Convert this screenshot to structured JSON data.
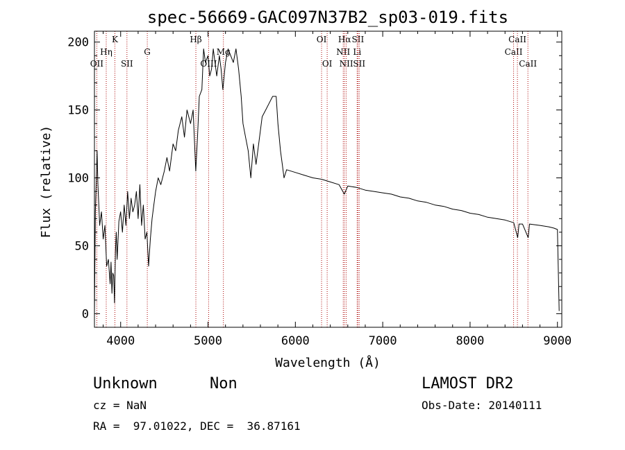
{
  "title": "spec-56669-GAC097N37B2_sp03-019.fits",
  "xlabel": "Wavelength (Å)",
  "ylabel": "Flux (relative)",
  "info": {
    "class_label": "Unknown",
    "subclass_label": "Non",
    "survey": "LAMOST DR2",
    "cz": "cz = NaN",
    "obs_date": "Obs-Date: 20140111",
    "coords": "RA =  97.01022, DEC =  36.87161"
  },
  "colors": {
    "spectrum": "#000000",
    "line_marker": "#aa0000",
    "axes": "#000000"
  },
  "chart_data": {
    "type": "line",
    "title": "spec-56669-GAC097N37B2_sp03-019.fits",
    "xlabel": "Wavelength (Å)",
    "ylabel": "Flux (relative)",
    "xlim": [
      3700,
      9050
    ],
    "ylim": [
      -10,
      208
    ],
    "x_ticks": [
      4000,
      5000,
      6000,
      7000,
      8000,
      9000
    ],
    "y_ticks": [
      0,
      50,
      100,
      150,
      200
    ],
    "grid": false,
    "series": [
      {
        "points": [
          [
            3700,
            0
          ],
          [
            3710,
            75
          ],
          [
            3720,
            95
          ],
          [
            3730,
            120
          ],
          [
            3740,
            95
          ],
          [
            3750,
            80
          ],
          [
            3760,
            65
          ],
          [
            3780,
            75
          ],
          [
            3800,
            55
          ],
          [
            3820,
            65
          ],
          [
            3840,
            35
          ],
          [
            3860,
            40
          ],
          [
            3880,
            22
          ],
          [
            3890,
            38
          ],
          [
            3900,
            15
          ],
          [
            3910,
            30
          ],
          [
            3920,
            28
          ],
          [
            3930,
            8
          ],
          [
            3940,
            45
          ],
          [
            3950,
            60
          ],
          [
            3960,
            40
          ],
          [
            3980,
            68
          ],
          [
            4000,
            75
          ],
          [
            4020,
            60
          ],
          [
            4040,
            80
          ],
          [
            4060,
            65
          ],
          [
            4080,
            90
          ],
          [
            4100,
            70
          ],
          [
            4120,
            85
          ],
          [
            4140,
            75
          ],
          [
            4160,
            80
          ],
          [
            4180,
            90
          ],
          [
            4200,
            70
          ],
          [
            4220,
            95
          ],
          [
            4240,
            65
          ],
          [
            4260,
            80
          ],
          [
            4280,
            55
          ],
          [
            4300,
            60
          ],
          [
            4320,
            35
          ],
          [
            4340,
            55
          ],
          [
            4360,
            70
          ],
          [
            4380,
            80
          ],
          [
            4400,
            90
          ],
          [
            4430,
            100
          ],
          [
            4460,
            95
          ],
          [
            4500,
            105
          ],
          [
            4530,
            115
          ],
          [
            4560,
            105
          ],
          [
            4600,
            125
          ],
          [
            4630,
            120
          ],
          [
            4660,
            135
          ],
          [
            4700,
            145
          ],
          [
            4730,
            130
          ],
          [
            4760,
            150
          ],
          [
            4800,
            140
          ],
          [
            4830,
            150
          ],
          [
            4860,
            105
          ],
          [
            4880,
            130
          ],
          [
            4900,
            160
          ],
          [
            4930,
            165
          ],
          [
            4950,
            195
          ],
          [
            4970,
            185
          ],
          [
            5000,
            190
          ],
          [
            5020,
            175
          ],
          [
            5040,
            180
          ],
          [
            5060,
            195
          ],
          [
            5080,
            185
          ],
          [
            5100,
            175
          ],
          [
            5130,
            190
          ],
          [
            5150,
            180
          ],
          [
            5170,
            165
          ],
          [
            5200,
            185
          ],
          [
            5230,
            195
          ],
          [
            5260,
            190
          ],
          [
            5290,
            185
          ],
          [
            5320,
            195
          ],
          [
            5350,
            180
          ],
          [
            5380,
            160
          ],
          [
            5400,
            140
          ],
          [
            5430,
            130
          ],
          [
            5460,
            120
          ],
          [
            5490,
            100
          ],
          [
            5520,
            125
          ],
          [
            5550,
            110
          ],
          [
            5580,
            125
          ],
          [
            5620,
            145
          ],
          [
            5660,
            150
          ],
          [
            5700,
            155
          ],
          [
            5740,
            160
          ],
          [
            5780,
            160
          ],
          [
            5800,
            140
          ],
          [
            5830,
            120
          ],
          [
            5850,
            110
          ],
          [
            5870,
            100
          ],
          [
            5900,
            106
          ],
          [
            6000,
            104
          ],
          [
            6100,
            102
          ],
          [
            6200,
            100
          ],
          [
            6300,
            99
          ],
          [
            6400,
            97
          ],
          [
            6500,
            95
          ],
          [
            6560,
            88
          ],
          [
            6600,
            94
          ],
          [
            6700,
            93
          ],
          [
            6800,
            91
          ],
          [
            6900,
            90
          ],
          [
            7000,
            89
          ],
          [
            7100,
            88
          ],
          [
            7200,
            86
          ],
          [
            7300,
            85
          ],
          [
            7400,
            83
          ],
          [
            7500,
            82
          ],
          [
            7600,
            80
          ],
          [
            7700,
            79
          ],
          [
            7800,
            77
          ],
          [
            7900,
            76
          ],
          [
            8000,
            74
          ],
          [
            8100,
            73
          ],
          [
            8200,
            71
          ],
          [
            8300,
            70
          ],
          [
            8400,
            69
          ],
          [
            8500,
            67
          ],
          [
            8545,
            56
          ],
          [
            8560,
            66
          ],
          [
            8600,
            66
          ],
          [
            8665,
            56
          ],
          [
            8680,
            66
          ],
          [
            8800,
            65
          ],
          [
            8900,
            64
          ],
          [
            8960,
            63
          ],
          [
            9000,
            62
          ],
          [
            9020,
            2
          ]
        ]
      }
    ],
    "line_markers": [
      {
        "wavelength": 3727,
        "label": "OII",
        "row": 3
      },
      {
        "wavelength": 3835,
        "label": "Hη",
        "row": 2
      },
      {
        "wavelength": 3934,
        "label": "K",
        "row": 1
      },
      {
        "wavelength": 4072,
        "label": "SII",
        "row": 3
      },
      {
        "wavelength": 4305,
        "label": "G",
        "row": 2
      },
      {
        "wavelength": 4861,
        "label": "Hβ",
        "row": 1
      },
      {
        "wavelength": 5007,
        "label": "OIII",
        "row": 3
      },
      {
        "wavelength": 5176,
        "label": "Mg",
        "row": 2
      },
      {
        "wavelength": 6300,
        "label": "OI",
        "row": 1
      },
      {
        "wavelength": 6364,
        "label": "OI",
        "row": 3
      },
      {
        "wavelength": 6548,
        "label": "NII",
        "row": 2
      },
      {
        "wavelength": 6563,
        "label": "Hα",
        "row": 1
      },
      {
        "wavelength": 6583,
        "label": "NII",
        "row": 3
      },
      {
        "wavelength": 6707,
        "label": "Li",
        "row": 2
      },
      {
        "wavelength": 6716,
        "label": "SII",
        "row": 1
      },
      {
        "wavelength": 6731,
        "label": "SII",
        "row": 3
      },
      {
        "wavelength": 8498,
        "label": "CaII",
        "row": 2
      },
      {
        "wavelength": 8542,
        "label": "CaII",
        "row": 1
      },
      {
        "wavelength": 8662,
        "label": "CaII",
        "row": 3
      }
    ]
  }
}
